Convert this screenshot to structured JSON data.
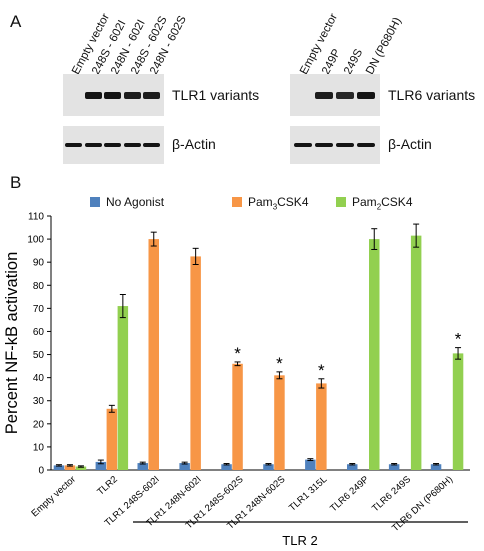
{
  "panel_a": {
    "letter": "A",
    "left_blot": {
      "lanes": [
        "Empty vector",
        "248S - 602I",
        "248N - 602I",
        "248S - 602S",
        "248N - 602S"
      ],
      "top_label": "TLR1 variants",
      "bottom_label": "β-Actin",
      "top_band_intensity": [
        0,
        1,
        1,
        0.9,
        0.9
      ]
    },
    "right_blot": {
      "lanes": [
        "Empty vector",
        "249P",
        "249S",
        "DN (P680H)"
      ],
      "top_label": "TLR6 variants",
      "bottom_label": "β-Actin",
      "top_band_intensity": [
        0,
        0.9,
        0.8,
        1
      ]
    }
  },
  "panel_b": {
    "letter": "B",
    "legend": [
      {
        "label": "No Agonist",
        "sub": "",
        "color": "#4f81bd"
      },
      {
        "label": "Pam",
        "sub": "3",
        "suffix": "CSK4",
        "color": "#f79646"
      },
      {
        "label": "Pam",
        "sub": "2",
        "suffix": "CSK4",
        "color": "#92d050"
      }
    ],
    "group_label": "TLR 2"
  },
  "chart_data": {
    "type": "bar",
    "ylabel": "Percent NF-kB activation",
    "xlabel": "",
    "ylim": [
      0,
      110
    ],
    "yticks": [
      0,
      10,
      20,
      30,
      40,
      50,
      60,
      70,
      80,
      90,
      100,
      110
    ],
    "grid": false,
    "legend_position": "top",
    "categories": [
      "Empty vector",
      "TLR2",
      "TLR1 248S-602I",
      "TLR1 248N-602I",
      "TLR1 248S-602S",
      "TLR1 248N-602S",
      "TLR1 315L",
      "TLR6 249P",
      "TLR6 249S",
      "TLR6 DN (P680H)"
    ],
    "series": [
      {
        "name": "No Agonist",
        "color": "#4f81bd",
        "values": [
          2,
          3.5,
          3,
          3,
          2.5,
          2.5,
          4.5,
          2.5,
          2.5,
          2.5
        ],
        "errors": [
          0.3,
          0.8,
          0.4,
          0.4,
          0.3,
          0.3,
          0.4,
          0.3,
          0.3,
          0.3
        ]
      },
      {
        "name": "Pam3CSK4",
        "color": "#f79646",
        "values": [
          2,
          26.5,
          100,
          92.5,
          46,
          41,
          37.5,
          null,
          null,
          null
        ],
        "errors": [
          0.3,
          1.5,
          3,
          3.5,
          0.8,
          1.5,
          2,
          null,
          null,
          null
        ]
      },
      {
        "name": "Pam2CSK4",
        "color": "#92d050",
        "values": [
          1.5,
          71,
          null,
          null,
          null,
          null,
          null,
          100,
          101.5,
          50.5
        ],
        "errors": [
          0.3,
          5,
          null,
          null,
          null,
          null,
          null,
          4.5,
          5,
          2.5
        ]
      }
    ],
    "significant": [
      {
        "category": "TLR1 248S-602S",
        "series": "Pam3CSK4",
        "mark": "*"
      },
      {
        "category": "TLR1 248N-602S",
        "series": "Pam3CSK4",
        "mark": "*"
      },
      {
        "category": "TLR1 315L",
        "series": "Pam3CSK4",
        "mark": "*"
      },
      {
        "category": "TLR6 DN (P680H)",
        "series": "Pam2CSK4",
        "mark": "*"
      }
    ]
  }
}
